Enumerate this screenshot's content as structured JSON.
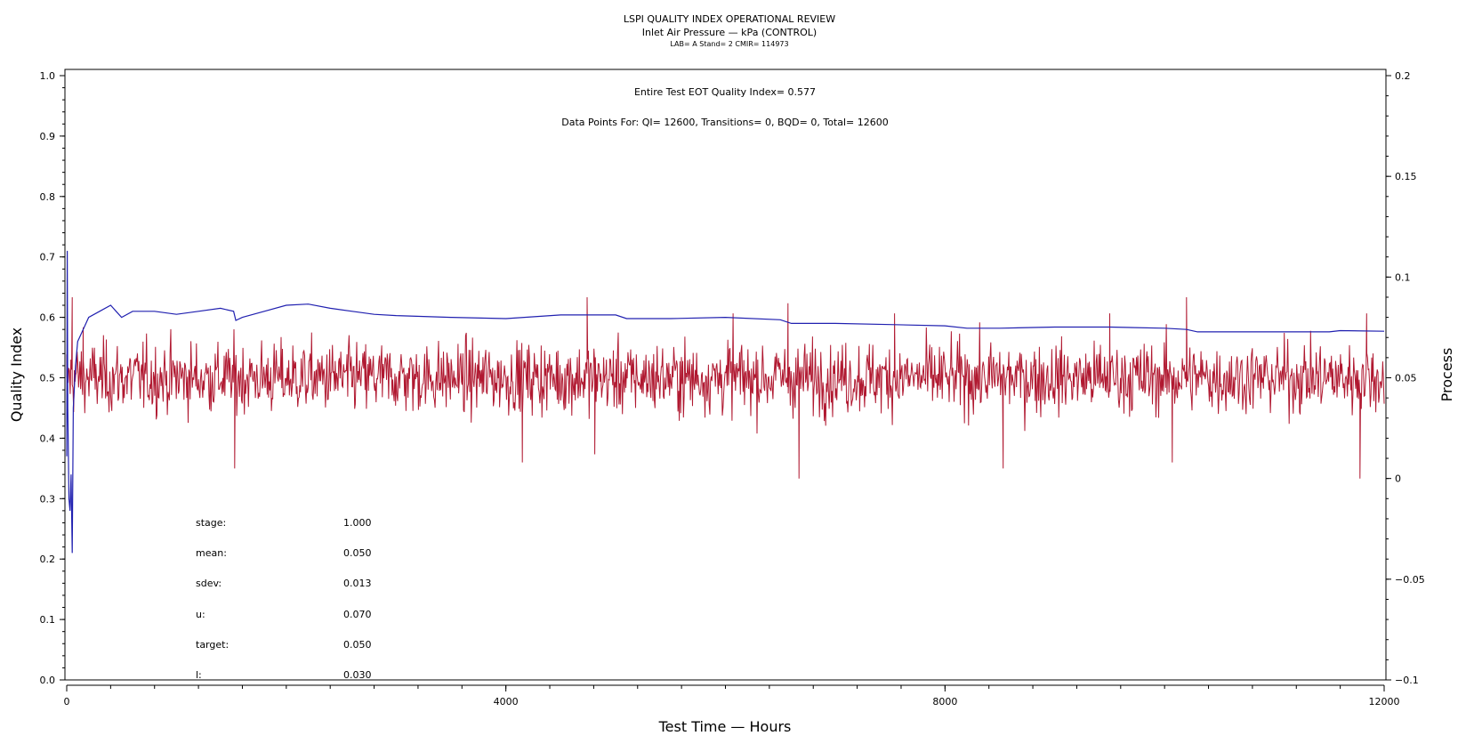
{
  "chart_data": {
    "type": "line",
    "title": "LSPI QUALITY INDEX OPERATIONAL REVIEW",
    "subtitle": "Inlet Air Pressure — kPa (CONTROL)",
    "subtitle2": "LAB= A Stand= 2 CMIR= 114973",
    "annotation1": "Entire Test EOT Quality Index=   0.577",
    "annotation2": "Data Points For: QI= 12600, Transitions=      0, BQD=      0, Total= 12600",
    "xlabel": "Test Time — Hours",
    "ylabel": "Quality Index",
    "y2label": "Process",
    "xlim": [
      0,
      12000
    ],
    "ylim": [
      0.0,
      1.0
    ],
    "y2lim": [
      -0.1,
      0.2
    ],
    "xticks": [
      "0",
      "4000",
      "8000",
      "12000"
    ],
    "yticks": [
      "0.0",
      "0.1",
      "0.2",
      "0.3",
      "0.4",
      "0.5",
      "0.6",
      "0.7",
      "0.8",
      "0.9",
      "1.0"
    ],
    "y2ticks": [
      "−0.1",
      "−0.05",
      "0",
      "0.05",
      "0.1",
      "0.15",
      "0.2"
    ],
    "series": [
      {
        "axis": "left",
        "color": "#2020b0",
        "x": [
          0,
          5,
          10,
          20,
          30,
          40,
          50,
          60,
          80,
          100,
          150,
          200,
          300,
          400,
          450,
          500,
          600,
          800,
          1000,
          1200,
          1400,
          1520,
          1540,
          1600,
          1800,
          2000,
          2200,
          2400,
          2600,
          2800,
          3000,
          3500,
          4000,
          4500,
          5000,
          5100,
          5500,
          6000,
          6500,
          6600,
          7000,
          7500,
          8000,
          8200,
          8500,
          9000,
          9500,
          10000,
          10200,
          10300,
          10500,
          11000,
          11500,
          11600,
          12000
        ],
        "y": [
          0.37,
          0.71,
          0.45,
          0.3,
          0.28,
          0.34,
          0.21,
          0.45,
          0.52,
          0.56,
          0.58,
          0.6,
          0.61,
          0.62,
          0.61,
          0.6,
          0.61,
          0.61,
          0.605,
          0.61,
          0.615,
          0.61,
          0.595,
          0.6,
          0.61,
          0.62,
          0.622,
          0.615,
          0.61,
          0.605,
          0.603,
          0.6,
          0.598,
          0.604,
          0.604,
          0.598,
          0.598,
          0.6,
          0.596,
          0.59,
          0.59,
          0.588,
          0.586,
          0.582,
          0.582,
          0.584,
          0.584,
          0.582,
          0.58,
          0.576,
          0.576,
          0.576,
          0.576,
          0.578,
          0.577
        ]
      },
      {
        "axis": "right",
        "color": "#b01830",
        "x": [
          0,
          50,
          150,
          1530,
          4150,
          4740,
          4810,
          6070,
          6570,
          6670,
          7540,
          8530,
          9500,
          10070,
          10200,
          11780,
          11840
        ],
        "y": [
          0.05,
          0.09,
          0.075,
          0.005,
          0.008,
          0.09,
          0.012,
          0.082,
          0.087,
          0.0,
          0.082,
          0.005,
          0.082,
          0.008,
          0.09,
          0.0,
          0.082
        ],
        "mean": 0.05,
        "sdev": 0.013
      }
    ]
  },
  "stats": [
    {
      "label": "stage:",
      "value": "1.000"
    },
    {
      "label": "mean:",
      "value": "0.050"
    },
    {
      "label": "sdev:",
      "value": "0.013"
    },
    {
      "label": "u:",
      "value": "0.070"
    },
    {
      "label": "target:",
      "value": "0.050"
    },
    {
      "label": "l:",
      "value": "0.030"
    }
  ]
}
